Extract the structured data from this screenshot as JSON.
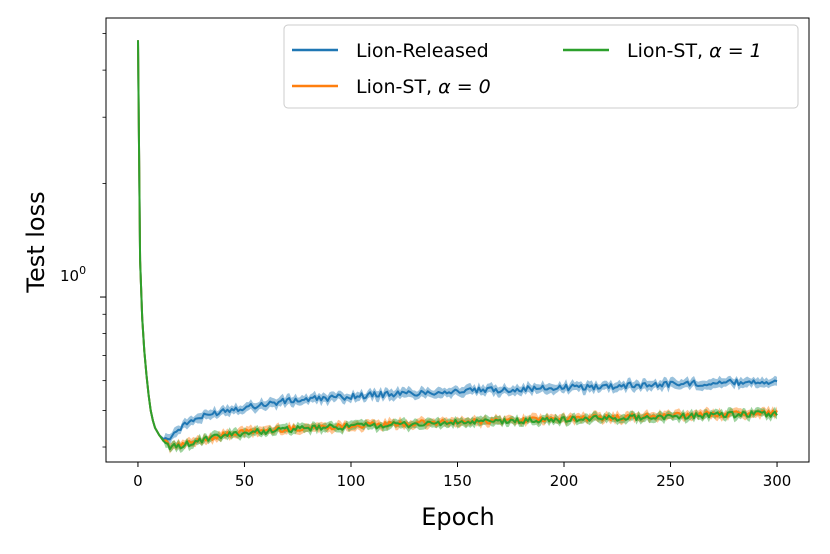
{
  "chart_data": {
    "type": "line",
    "title": "",
    "xlabel": "Epoch",
    "ylabel": "Test loss",
    "xlim": [
      -15,
      315
    ],
    "ylim": [
      0.365,
      5.5
    ],
    "yscale": "log",
    "xticks": [
      0,
      50,
      100,
      150,
      200,
      250,
      300
    ],
    "xtick_labels": [
      "0",
      "50",
      "100",
      "150",
      "200",
      "250",
      "300"
    ],
    "ytick_major_label": "10",
    "ytick_major_exp": "0",
    "grid": false,
    "legend_placement": "top-right",
    "legend": {
      "col1": [
        "Lion-Released",
        "Lion-ST, "
      ],
      "col2": [
        "Lion-ST, "
      ],
      "alpha0_suffix": "α = 0",
      "alpha1_suffix": "α = 1"
    },
    "shaded_band": true,
    "series": [
      {
        "name": "Lion-Released",
        "color": "#1f77b4",
        "x": [
          0,
          1,
          2,
          3,
          4,
          5,
          6,
          7,
          8,
          9,
          10,
          12,
          14,
          15,
          18,
          20,
          25,
          30,
          35,
          40,
          45,
          50,
          60,
          70,
          80,
          90,
          100,
          110,
          120,
          130,
          140,
          150,
          160,
          170,
          180,
          190,
          200,
          210,
          220,
          230,
          240,
          250,
          260,
          270,
          280,
          290,
          300
        ],
        "y": [
          4.8,
          1.25,
          0.88,
          0.72,
          0.62,
          0.55,
          0.5,
          0.47,
          0.45,
          0.44,
          0.43,
          0.42,
          0.42,
          0.425,
          0.44,
          0.45,
          0.47,
          0.48,
          0.49,
          0.5,
          0.505,
          0.51,
          0.52,
          0.53,
          0.535,
          0.54,
          0.545,
          0.55,
          0.553,
          0.556,
          0.56,
          0.562,
          0.565,
          0.567,
          0.57,
          0.572,
          0.575,
          0.577,
          0.58,
          0.583,
          0.585,
          0.588,
          0.59,
          0.592,
          0.594,
          0.596,
          0.598
        ],
        "band": 0.022
      },
      {
        "name": "Lion-ST, α = 0",
        "color": "#ff7f0e",
        "x": [
          0,
          1,
          2,
          3,
          4,
          5,
          6,
          7,
          8,
          9,
          10,
          12,
          14,
          15,
          18,
          20,
          25,
          30,
          35,
          40,
          45,
          50,
          60,
          70,
          80,
          90,
          100,
          110,
          120,
          130,
          140,
          150,
          160,
          170,
          180,
          190,
          200,
          210,
          220,
          230,
          240,
          250,
          260,
          270,
          280,
          290,
          300
        ],
        "y": [
          4.8,
          1.25,
          0.88,
          0.72,
          0.62,
          0.55,
          0.5,
          0.47,
          0.45,
          0.44,
          0.43,
          0.415,
          0.405,
          0.4,
          0.403,
          0.405,
          0.41,
          0.418,
          0.425,
          0.43,
          0.435,
          0.438,
          0.443,
          0.447,
          0.45,
          0.453,
          0.456,
          0.458,
          0.46,
          0.462,
          0.464,
          0.466,
          0.468,
          0.47,
          0.472,
          0.473,
          0.475,
          0.477,
          0.479,
          0.481,
          0.483,
          0.485,
          0.487,
          0.489,
          0.49,
          0.492,
          0.494
        ],
        "band": 0.02
      },
      {
        "name": "Lion-ST, α = 1",
        "color": "#2ca02c",
        "x": [
          0,
          1,
          2,
          3,
          4,
          5,
          6,
          7,
          8,
          9,
          10,
          12,
          14,
          15,
          18,
          20,
          25,
          30,
          35,
          40,
          45,
          50,
          60,
          70,
          80,
          90,
          100,
          110,
          120,
          130,
          140,
          150,
          160,
          170,
          180,
          190,
          200,
          210,
          220,
          230,
          240,
          250,
          260,
          270,
          280,
          290,
          300
        ],
        "y": [
          4.8,
          1.25,
          0.88,
          0.72,
          0.62,
          0.55,
          0.5,
          0.47,
          0.45,
          0.44,
          0.43,
          0.415,
          0.405,
          0.4,
          0.402,
          0.404,
          0.409,
          0.416,
          0.423,
          0.428,
          0.433,
          0.436,
          0.441,
          0.445,
          0.448,
          0.451,
          0.454,
          0.456,
          0.458,
          0.46,
          0.462,
          0.464,
          0.466,
          0.468,
          0.469,
          0.471,
          0.473,
          0.475,
          0.477,
          0.479,
          0.48,
          0.482,
          0.484,
          0.486,
          0.487,
          0.489,
          0.49
        ],
        "band": 0.02
      }
    ]
  }
}
